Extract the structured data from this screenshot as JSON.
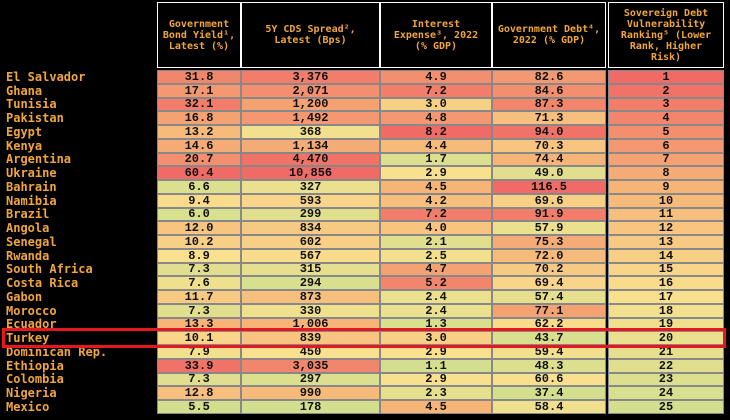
{
  "header": {
    "country": "",
    "columns": [
      "Government Bond Yield¹, Latest (%)",
      "5Y CDS Spread², Latest (Bps)",
      "Interest Expense³, 2022 (% GDP)",
      "Government Debt⁴, 2022 (% GDP)",
      "Sovereign Debt Vulnerability Ranking⁵ (Lower Rank, Higher Risk)"
    ]
  },
  "color_scale": [
    "#d3df8e",
    "#f8e08e",
    "#f6b477",
    "#f06a66"
  ],
  "highlight_color": "#e8171d",
  "table": {
    "rows": [
      [
        "El Salvador",
        "31.8",
        "3,376",
        "4.9",
        "82.6",
        "1"
      ],
      [
        "Ghana",
        "17.1",
        "2,071",
        "7.2",
        "84.6",
        "2"
      ],
      [
        "Tunisia",
        "32.1",
        "1,200",
        "3.0",
        "87.3",
        "3"
      ],
      [
        "Pakistan",
        "16.8",
        "1,492",
        "4.8",
        "71.3",
        "4"
      ],
      [
        "Egypt",
        "13.2",
        "368",
        "8.2",
        "94.0",
        "5"
      ],
      [
        "Kenya",
        "14.6",
        "1,134",
        "4.4",
        "70.3",
        "6"
      ],
      [
        "Argentina",
        "20.7",
        "4,470",
        "1.7",
        "74.4",
        "7"
      ],
      [
        "Ukraine",
        "60.4",
        "10,856",
        "2.9",
        "49.0",
        "8"
      ],
      [
        "Bahrain",
        "6.6",
        "327",
        "4.5",
        "116.5",
        "9"
      ],
      [
        "Namibia",
        "9.4",
        "593",
        "4.2",
        "69.6",
        "10"
      ],
      [
        "Brazil",
        "6.0",
        "299",
        "7.2",
        "91.9",
        "11"
      ],
      [
        "Angola",
        "12.0",
        "834",
        "4.0",
        "57.9",
        "12"
      ],
      [
        "Senegal",
        "10.2",
        "602",
        "2.1",
        "75.3",
        "13"
      ],
      [
        "Rwanda",
        "8.9",
        "567",
        "2.5",
        "72.0",
        "14"
      ],
      [
        "South Africa",
        "7.3",
        "315",
        "4.7",
        "70.2",
        "15"
      ],
      [
        "Costa Rica",
        "7.6",
        "294",
        "5.2",
        "69.4",
        "16"
      ],
      [
        "Gabon",
        "11.7",
        "873",
        "2.4",
        "57.4",
        "17"
      ],
      [
        "Morocco",
        "7.3",
        "330",
        "2.4",
        "77.1",
        "18"
      ],
      [
        "Ecuador",
        "13.3",
        "1,006",
        "1.3",
        "62.2",
        "19"
      ],
      [
        "Turkey",
        "10.1",
        "839",
        "3.0",
        "43.7",
        "20"
      ],
      [
        "Dominican Rep.",
        "7.9",
        "450",
        "2.9",
        "59.4",
        "21"
      ],
      [
        "Ethiopia",
        "33.9",
        "3,035",
        "1.1",
        "48.3",
        "22"
      ],
      [
        "Colombia",
        "7.3",
        "297",
        "2.9",
        "60.6",
        "23"
      ],
      [
        "Nigeria",
        "12.8",
        "990",
        "2.3",
        "37.4",
        "24"
      ],
      [
        "Mexico",
        "5.5",
        "178",
        "4.5",
        "58.4",
        "25"
      ]
    ]
  }
}
